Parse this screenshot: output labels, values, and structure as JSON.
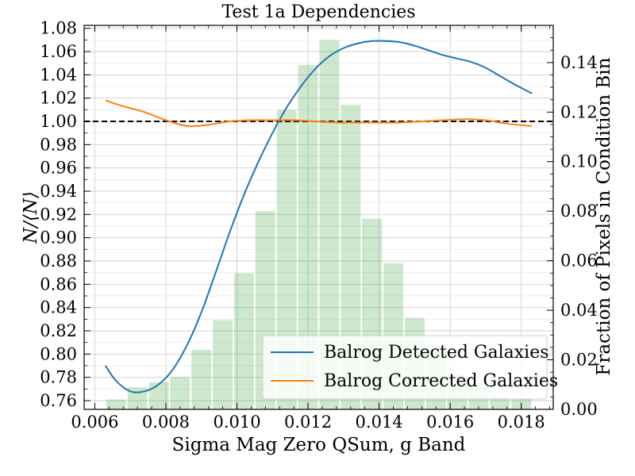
{
  "chart_data": {
    "type": "bar+line",
    "title": "Test 1a Dependencies",
    "xlabel": "Sigma Mag Zero QSum, g Band",
    "ylabel_left": "N/⟨N⟩",
    "ylabel_right": "Fraction of Pixels in Condition Bin",
    "xlim": [
      0.0057,
      0.0189
    ],
    "ylim_left": [
      0.7525,
      1.0825
    ],
    "ylim_right": [
      0.0,
      0.155
    ],
    "grid": true,
    "x_ticks": [
      {
        "value": 0.006,
        "label": "0.006"
      },
      {
        "value": 0.008,
        "label": "0.008"
      },
      {
        "value": 0.01,
        "label": "0.010"
      },
      {
        "value": 0.012,
        "label": "0.012"
      },
      {
        "value": 0.014,
        "label": "0.014"
      },
      {
        "value": 0.016,
        "label": "0.016"
      },
      {
        "value": 0.018,
        "label": "0.018"
      }
    ],
    "y_left_ticks": [
      {
        "value": 0.76,
        "label": "0.76"
      },
      {
        "value": 0.78,
        "label": "0.78"
      },
      {
        "value": 0.8,
        "label": "0.80"
      },
      {
        "value": 0.82,
        "label": "0.82"
      },
      {
        "value": 0.84,
        "label": "0.84"
      },
      {
        "value": 0.86,
        "label": "0.86"
      },
      {
        "value": 0.88,
        "label": "0.88"
      },
      {
        "value": 0.9,
        "label": "0.90"
      },
      {
        "value": 0.92,
        "label": "0.92"
      },
      {
        "value": 0.94,
        "label": "0.94"
      },
      {
        "value": 0.96,
        "label": "0.96"
      },
      {
        "value": 0.98,
        "label": "0.98"
      },
      {
        "value": 1.0,
        "label": "1.00"
      },
      {
        "value": 1.02,
        "label": "1.02"
      },
      {
        "value": 1.04,
        "label": "1.04"
      },
      {
        "value": 1.06,
        "label": "1.06"
      },
      {
        "value": 1.08,
        "label": "1.08"
      }
    ],
    "y_right_ticks": [
      {
        "value": 0.0,
        "label": "0.00"
      },
      {
        "value": 0.02,
        "label": "0.02"
      },
      {
        "value": 0.04,
        "label": "0.04"
      },
      {
        "value": 0.06,
        "label": "0.06"
      },
      {
        "value": 0.08,
        "label": "0.08"
      },
      {
        "value": 0.1,
        "label": "0.10"
      },
      {
        "value": 0.12,
        "label": "0.12"
      },
      {
        "value": 0.14,
        "label": "0.14"
      }
    ],
    "histogram": {
      "axis": "right",
      "color": "#2ca02c",
      "opacity": 0.24,
      "bin_width": 0.0006,
      "bins": [
        {
          "x": 0.0066,
          "value": 0.004
        },
        {
          "x": 0.0072,
          "value": 0.009
        },
        {
          "x": 0.0078,
          "value": 0.011
        },
        {
          "x": 0.0084,
          "value": 0.013
        },
        {
          "x": 0.009,
          "value": 0.024
        },
        {
          "x": 0.0096,
          "value": 0.036
        },
        {
          "x": 0.0102,
          "value": 0.055
        },
        {
          "x": 0.0108,
          "value": 0.08
        },
        {
          "x": 0.0114,
          "value": 0.121
        },
        {
          "x": 0.012,
          "value": 0.139
        },
        {
          "x": 0.0126,
          "value": 0.149
        },
        {
          "x": 0.0132,
          "value": 0.123
        },
        {
          "x": 0.0138,
          "value": 0.077
        },
        {
          "x": 0.0144,
          "value": 0.059
        },
        {
          "x": 0.015,
          "value": 0.037
        },
        {
          "x": 0.0156,
          "value": 0.026
        },
        {
          "x": 0.0162,
          "value": 0.014
        },
        {
          "x": 0.0168,
          "value": 0.009
        },
        {
          "x": 0.0174,
          "value": 0.005
        },
        {
          "x": 0.018,
          "value": 0.004
        }
      ]
    },
    "reference_line": {
      "axis": "left",
      "y": 1.0,
      "color": "#000000",
      "style": "dashed"
    },
    "series": [
      {
        "name": "Balrog Detected Galaxies",
        "axis": "left",
        "color": "#1f77b4",
        "x": [
          0.0063,
          0.0066,
          0.007,
          0.0074,
          0.0078,
          0.0082,
          0.0086,
          0.009,
          0.0094,
          0.0098,
          0.0102,
          0.0106,
          0.011,
          0.0114,
          0.0118,
          0.0122,
          0.0126,
          0.013,
          0.0134,
          0.0138,
          0.0142,
          0.0146,
          0.015,
          0.0154,
          0.0158,
          0.0162,
          0.0166,
          0.017,
          0.0174,
          0.0178,
          0.0183
        ],
        "y": [
          0.79,
          0.777,
          0.768,
          0.768,
          0.774,
          0.787,
          0.808,
          0.836,
          0.87,
          0.905,
          0.937,
          0.965,
          0.99,
          1.012,
          1.03,
          1.045,
          1.056,
          1.063,
          1.067,
          1.069,
          1.069,
          1.068,
          1.065,
          1.061,
          1.057,
          1.054,
          1.051,
          1.046,
          1.039,
          1.032,
          1.024
        ]
      },
      {
        "name": "Balrog Corrected Galaxies",
        "axis": "left",
        "color": "#ff7f0e",
        "x": [
          0.0063,
          0.0068,
          0.0074,
          0.008,
          0.0086,
          0.0092,
          0.0098,
          0.0104,
          0.011,
          0.0116,
          0.0122,
          0.0128,
          0.0134,
          0.014,
          0.0146,
          0.0152,
          0.0158,
          0.0164,
          0.017,
          0.0176,
          0.0183
        ],
        "y": [
          1.018,
          1.013,
          1.008,
          1.001,
          0.996,
          0.997,
          1.0,
          1.001,
          1.001,
          1.001,
          1.0,
          0.999,
          0.999,
          0.999,
          0.999,
          1.0,
          1.001,
          1.002,
          1.001,
          0.998,
          0.996
        ]
      }
    ],
    "legend": {
      "location": "lower-right",
      "entries": [
        "Balrog Detected Galaxies",
        "Balrog Corrected Galaxies"
      ]
    }
  }
}
